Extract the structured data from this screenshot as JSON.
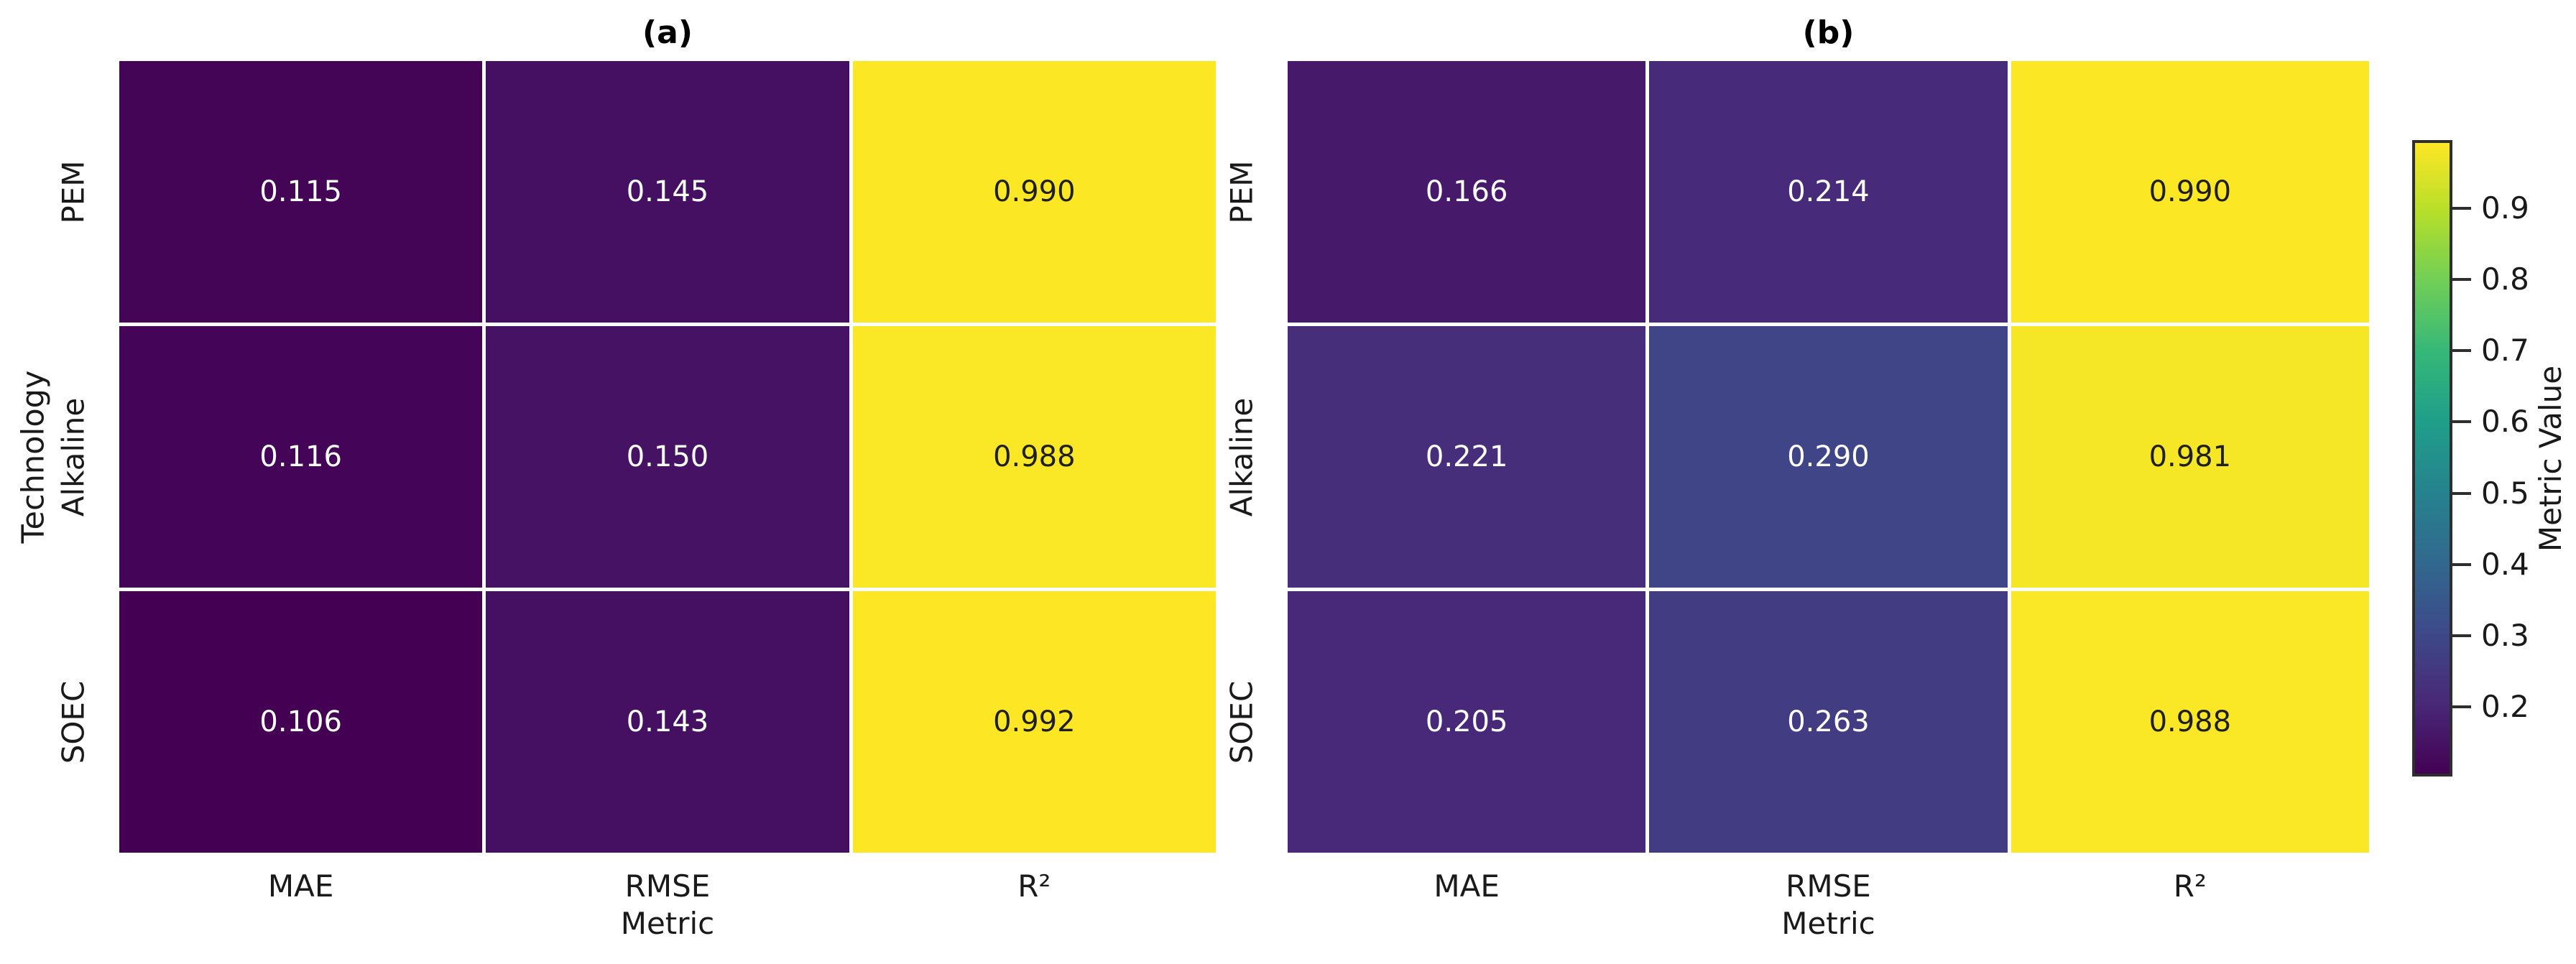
{
  "chart_data": [
    {
      "type": "heatmap",
      "title": "(a)",
      "xlabel": "Metric",
      "ylabel": "Technology",
      "columns": [
        "MAE",
        "RMSE",
        "R²"
      ],
      "rows": [
        "PEM",
        "Alkaline",
        "SOEC"
      ],
      "values": [
        [
          0.115,
          0.145,
          0.99
        ],
        [
          0.116,
          0.15,
          0.988
        ],
        [
          0.106,
          0.143,
          0.992
        ]
      ],
      "value_decimals": 3
    },
    {
      "type": "heatmap",
      "title": "(b)",
      "xlabel": "Metric",
      "ylabel": "",
      "columns": [
        "MAE",
        "RMSE",
        "R²"
      ],
      "rows": [
        "PEM",
        "Alkaline",
        "SOEC"
      ],
      "values": [
        [
          0.166,
          0.214,
          0.99
        ],
        [
          0.221,
          0.29,
          0.981
        ],
        [
          0.205,
          0.263,
          0.988
        ]
      ],
      "value_decimals": 3
    }
  ],
  "colorbar": {
    "label": "Metric Value",
    "tick_values": [
      0.9,
      0.8,
      0.7,
      0.6,
      0.5,
      0.4,
      0.3,
      0.2
    ],
    "tick_labels": [
      "0.9",
      "0.8",
      "0.7",
      "0.6",
      "0.5",
      "0.4",
      "0.3",
      "0.2"
    ],
    "vmin": 0.106,
    "vmax": 0.992,
    "colormap": "viridis",
    "orientation": "vertical",
    "position": "right"
  },
  "colors": {
    "viridis_stops": [
      "#440154",
      "#482878",
      "#3e4989",
      "#31688e",
      "#26828e",
      "#1f9e89",
      "#35b779",
      "#6ece58",
      "#b5de2b",
      "#fde725"
    ],
    "annotation_light": "#ffffff",
    "annotation_dark": "#1f1f1f",
    "axis_text": "#1a1a1a",
    "colorbar_border": "#2e2e2e",
    "background": "#ffffff",
    "grid_line": "#ffffff"
  }
}
